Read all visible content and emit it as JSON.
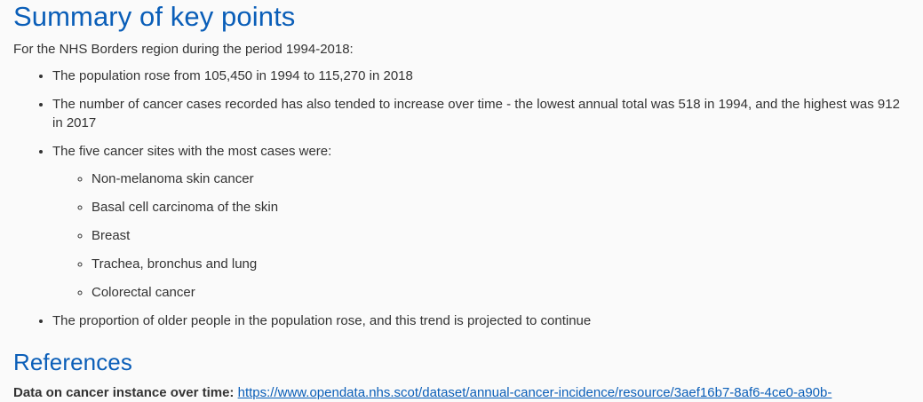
{
  "summary": {
    "heading": "Summary of key points",
    "intro": "For the NHS Borders region during the period 1994-2018:",
    "points": [
      "The population rose from 105,450 in 1994 to 115,270 in 2018",
      "The number of cancer cases recorded has also tended to increase over time - the lowest annual total was 518 in 1994, and the highest was 912 in 2017",
      "The five cancer sites with the most cases were:",
      "The proportion of older people in the population rose, and this trend is projected to continue"
    ],
    "cancer_sites": [
      "Non-melanoma skin cancer",
      "Basal cell carcinoma of the skin",
      "Breast",
      "Trachea, bronchus and lung",
      "Colorectal cancer"
    ]
  },
  "references": {
    "heading": "References",
    "items": [
      {
        "label": "Data on cancer instance over time:",
        "link_text": "https://www.opendata.nhs.scot/dataset/annual-cancer-incidence/resource/3aef16b7-8af6-4ce0-a90b-"
      }
    ]
  },
  "colors": {
    "heading": "#0a5eb8",
    "text": "#333333",
    "link": "#0a5eb8",
    "background": "#fafafa"
  }
}
